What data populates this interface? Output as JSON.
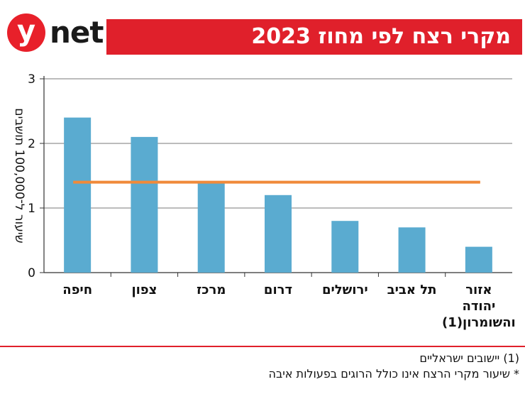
{
  "brand": {
    "logo_letter": "y",
    "logo_word": "net"
  },
  "header": {
    "title": "מקרי רצח לפי מחוז 2023"
  },
  "chart_data": {
    "type": "bar",
    "categories": [
      [
        "חיפה"
      ],
      [
        "צפון"
      ],
      [
        "מרכז"
      ],
      [
        "דרום"
      ],
      [
        "ירושלים"
      ],
      [
        "תל אביב"
      ],
      [
        "אזור",
        "יהודה",
        "והשומרון(1)"
      ]
    ],
    "values": [
      2.4,
      2.1,
      1.4,
      1.2,
      0.8,
      0.7,
      0.4
    ],
    "average_line": 1.4,
    "ylabel": "שיעור ל־100,000 תושבים",
    "ylim": [
      0,
      3
    ],
    "yticks": [
      0,
      1,
      2,
      3
    ],
    "grid": true,
    "colors": {
      "bar": "#5aabd0",
      "average_line": "#f08a3a",
      "grid": "#7a7a7a"
    }
  },
  "footnotes": [
    "(1) יישובים ישראליים",
    "* שיעור מקרי הרצח אינו כולל הרוגים בפעולות איבה"
  ]
}
